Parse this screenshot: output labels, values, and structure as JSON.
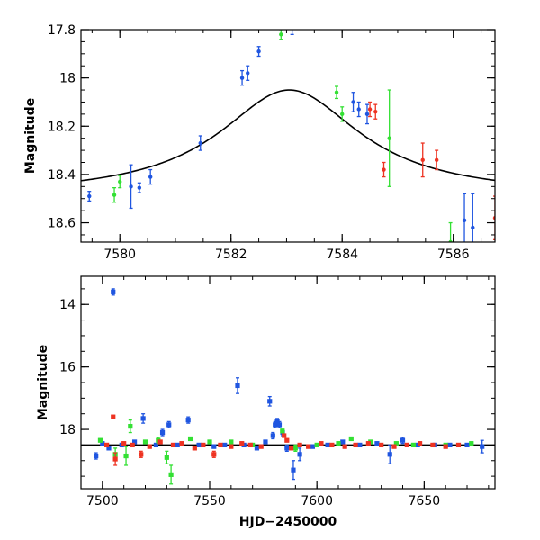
{
  "chart_data": [
    {
      "type": "scatter",
      "title": "",
      "xlabel": "",
      "ylabel": "Magnitude",
      "xlim": [
        7579.3,
        7586.75
      ],
      "ylim": [
        17.8,
        18.68
      ],
      "y_inverted": true,
      "x_ticks": [
        7580,
        7582,
        7584,
        7586
      ],
      "y_ticks": [
        17.8,
        18,
        18.2,
        18.4,
        18.6
      ],
      "grid": false,
      "legend": "none",
      "colors": {
        "blue": "#1f55e0",
        "green": "#33e033",
        "red": "#ee3322",
        "model": "#000000"
      },
      "model_curve": {
        "type": "lorentzian",
        "peak_x": 7583.05,
        "peak_y": 18.05,
        "baseline_y": 18.49,
        "half_width": 1.55
      },
      "series": [
        {
          "color": "blue",
          "points": [
            {
              "x": 7579.45,
              "y": 18.49,
              "err": 0.02
            },
            {
              "x": 7580.2,
              "y": 18.45,
              "err": 0.09
            },
            {
              "x": 7580.35,
              "y": 18.455,
              "err": 0.02
            },
            {
              "x": 7580.55,
              "y": 18.41,
              "err": 0.03
            },
            {
              "x": 7581.45,
              "y": 18.27,
              "err": 0.03
            },
            {
              "x": 7582.2,
              "y": 18.0,
              "err": 0.03
            },
            {
              "x": 7582.3,
              "y": 17.98,
              "err": 0.03
            },
            {
              "x": 7582.5,
              "y": 17.89,
              "err": 0.02
            },
            {
              "x": 7583.1,
              "y": 17.79,
              "err": 0.03
            },
            {
              "x": 7584.2,
              "y": 18.1,
              "err": 0.04
            },
            {
              "x": 7584.3,
              "y": 18.13,
              "err": 0.03
            },
            {
              "x": 7584.45,
              "y": 18.15,
              "err": 0.04
            },
            {
              "x": 7586.2,
              "y": 18.59,
              "err": 0.11
            },
            {
              "x": 7586.35,
              "y": 18.62,
              "err": 0.14
            }
          ]
        },
        {
          "color": "green",
          "points": [
            {
              "x": 7579.9,
              "y": 18.485,
              "err": 0.03
            },
            {
              "x": 7580.0,
              "y": 18.43,
              "err": 0.025
            },
            {
              "x": 7582.9,
              "y": 17.82,
              "err": 0.02
            },
            {
              "x": 7583.9,
              "y": 18.06,
              "err": 0.025
            },
            {
              "x": 7584.0,
              "y": 18.15,
              "err": 0.03
            },
            {
              "x": 7584.85,
              "y": 18.25,
              "err": 0.2
            },
            {
              "x": 7585.95,
              "y": 18.68,
              "err": 0.08
            }
          ]
        },
        {
          "color": "red",
          "points": [
            {
              "x": 7584.5,
              "y": 18.13,
              "err": 0.03
            },
            {
              "x": 7584.6,
              "y": 18.14,
              "err": 0.03
            },
            {
              "x": 7584.75,
              "y": 18.38,
              "err": 0.03
            },
            {
              "x": 7585.45,
              "y": 18.34,
              "err": 0.07
            },
            {
              "x": 7585.7,
              "y": 18.34,
              "err": 0.04
            },
            {
              "x": 7586.75,
              "y": 18.58,
              "err": 0.09
            }
          ]
        }
      ]
    },
    {
      "type": "scatter",
      "title": "",
      "xlabel": "HJD−2450000",
      "ylabel": "Magnitude",
      "xlim": [
        7490,
        7683
      ],
      "ylim": [
        13.1,
        19.9
      ],
      "y_inverted": true,
      "x_ticks": [
        7500,
        7550,
        7600,
        7650
      ],
      "y_ticks": [
        14,
        16,
        18
      ],
      "grid": false,
      "legend": "none",
      "baseline_y": 18.5,
      "colors": {
        "blue": "#1f55e0",
        "green": "#33e033",
        "red": "#ee3322",
        "model": "#000000"
      },
      "series": [
        {
          "color": "blue",
          "points": [
            {
              "x": 7497,
              "y": 18.85,
              "err": 0.1
            },
            {
              "x": 7500,
              "y": 18.45,
              "err": 0.05
            },
            {
              "x": 7503,
              "y": 18.6,
              "err": 0.05
            },
            {
              "x": 7505,
              "y": 13.6,
              "err": 0.1
            },
            {
              "x": 7509,
              "y": 18.5,
              "err": 0.05
            },
            {
              "x": 7515,
              "y": 18.4,
              "err": 0.05
            },
            {
              "x": 7519,
              "y": 17.65,
              "err": 0.15
            },
            {
              "x": 7525,
              "y": 18.5,
              "err": 0.05
            },
            {
              "x": 7528,
              "y": 18.1,
              "err": 0.1
            },
            {
              "x": 7531,
              "y": 17.85,
              "err": 0.1
            },
            {
              "x": 7535,
              "y": 18.5,
              "err": 0.05
            },
            {
              "x": 7540,
              "y": 17.7,
              "err": 0.1
            },
            {
              "x": 7545,
              "y": 18.5,
              "err": 0.05
            },
            {
              "x": 7552,
              "y": 18.55,
              "err": 0.05
            },
            {
              "x": 7557,
              "y": 18.5,
              "err": 0.05
            },
            {
              "x": 7563,
              "y": 16.6,
              "err": 0.25
            },
            {
              "x": 7566,
              "y": 18.5,
              "err": 0.05
            },
            {
              "x": 7572,
              "y": 18.6,
              "err": 0.05
            },
            {
              "x": 7576,
              "y": 18.4,
              "err": 0.05
            },
            {
              "x": 7578,
              "y": 17.1,
              "err": 0.15
            },
            {
              "x": 7579.5,
              "y": 18.2,
              "err": 0.1
            },
            {
              "x": 7580.5,
              "y": 17.85,
              "err": 0.1
            },
            {
              "x": 7581.5,
              "y": 17.75,
              "err": 0.1
            },
            {
              "x": 7582.5,
              "y": 17.85,
              "err": 0.1
            },
            {
              "x": 7584,
              "y": 18.1,
              "err": 0.1
            },
            {
              "x": 7586,
              "y": 18.6,
              "err": 0.1
            },
            {
              "x": 7589,
              "y": 19.3,
              "err": 0.3
            },
            {
              "x": 7592,
              "y": 18.8,
              "err": 0.2
            },
            {
              "x": 7598,
              "y": 18.55,
              "err": 0.05
            },
            {
              "x": 7605,
              "y": 18.5,
              "err": 0.05
            },
            {
              "x": 7612,
              "y": 18.4,
              "err": 0.05
            },
            {
              "x": 7620,
              "y": 18.5,
              "err": 0.05
            },
            {
              "x": 7628,
              "y": 18.45,
              "err": 0.05
            },
            {
              "x": 7634,
              "y": 18.8,
              "err": 0.3
            },
            {
              "x": 7640,
              "y": 18.35,
              "err": 0.1
            },
            {
              "x": 7647,
              "y": 18.5,
              "err": 0.05
            },
            {
              "x": 7655,
              "y": 18.5,
              "err": 0.05
            },
            {
              "x": 7662,
              "y": 18.5,
              "err": 0.05
            },
            {
              "x": 7670,
              "y": 18.5,
              "err": 0.05
            },
            {
              "x": 7677,
              "y": 18.55,
              "err": 0.2
            }
          ]
        },
        {
          "color": "green",
          "points": [
            {
              "x": 7499,
              "y": 18.35,
              "err": 0.05
            },
            {
              "x": 7506,
              "y": 18.8,
              "err": 0.2
            },
            {
              "x": 7511,
              "y": 18.85,
              "err": 0.3
            },
            {
              "x": 7513,
              "y": 17.9,
              "err": 0.2
            },
            {
              "x": 7520,
              "y": 18.4,
              "err": 0.05
            },
            {
              "x": 7526,
              "y": 18.35,
              "err": 0.1
            },
            {
              "x": 7530,
              "y": 18.9,
              "err": 0.2
            },
            {
              "x": 7532,
              "y": 19.45,
              "err": 0.3
            },
            {
              "x": 7541,
              "y": 18.3,
              "err": 0.05
            },
            {
              "x": 7550,
              "y": 18.4,
              "err": 0.05
            },
            {
              "x": 7560,
              "y": 18.4,
              "err": 0.05
            },
            {
              "x": 7570,
              "y": 18.5,
              "err": 0.05
            },
            {
              "x": 7583.9,
              "y": 18.05,
              "err": 0.05
            },
            {
              "x": 7590,
              "y": 18.6,
              "err": 0.1
            },
            {
              "x": 7600,
              "y": 18.5,
              "err": 0.05
            },
            {
              "x": 7610,
              "y": 18.45,
              "err": 0.05
            },
            {
              "x": 7616,
              "y": 18.3,
              "err": 0.05
            },
            {
              "x": 7625,
              "y": 18.4,
              "err": 0.05
            },
            {
              "x": 7637,
              "y": 18.45,
              "err": 0.05
            },
            {
              "x": 7645,
              "y": 18.5,
              "err": 0.05
            },
            {
              "x": 7660,
              "y": 18.5,
              "err": 0.05
            },
            {
              "x": 7672,
              "y": 18.45,
              "err": 0.05
            }
          ]
        },
        {
          "color": "red",
          "points": [
            {
              "x": 7502,
              "y": 18.5,
              "err": 0.05
            },
            {
              "x": 7505,
              "y": 17.6,
              "err": 0.05
            },
            {
              "x": 7506,
              "y": 18.95,
              "err": 0.2
            },
            {
              "x": 7510,
              "y": 18.45,
              "err": 0.05
            },
            {
              "x": 7514,
              "y": 18.5,
              "err": 0.05
            },
            {
              "x": 7518,
              "y": 18.8,
              "err": 0.1
            },
            {
              "x": 7522,
              "y": 18.55,
              "err": 0.05
            },
            {
              "x": 7527,
              "y": 18.4,
              "err": 0.05
            },
            {
              "x": 7533,
              "y": 18.5,
              "err": 0.05
            },
            {
              "x": 7537,
              "y": 18.45,
              "err": 0.05
            },
            {
              "x": 7543,
              "y": 18.6,
              "err": 0.05
            },
            {
              "x": 7547,
              "y": 18.5,
              "err": 0.05
            },
            {
              "x": 7552,
              "y": 18.8,
              "err": 0.1
            },
            {
              "x": 7555,
              "y": 18.5,
              "err": 0.05
            },
            {
              "x": 7560,
              "y": 18.55,
              "err": 0.05
            },
            {
              "x": 7565,
              "y": 18.45,
              "err": 0.05
            },
            {
              "x": 7569,
              "y": 18.5,
              "err": 0.05
            },
            {
              "x": 7574,
              "y": 18.55,
              "err": 0.05
            },
            {
              "x": 7584.7,
              "y": 18.2,
              "err": 0.05
            },
            {
              "x": 7586,
              "y": 18.35,
              "err": 0.05
            },
            {
              "x": 7588,
              "y": 18.6,
              "err": 0.05
            },
            {
              "x": 7592,
              "y": 18.5,
              "err": 0.05
            },
            {
              "x": 7596,
              "y": 18.55,
              "err": 0.05
            },
            {
              "x": 7602,
              "y": 18.45,
              "err": 0.05
            },
            {
              "x": 7607,
              "y": 18.5,
              "err": 0.05
            },
            {
              "x": 7613,
              "y": 18.55,
              "err": 0.05
            },
            {
              "x": 7618,
              "y": 18.5,
              "err": 0.05
            },
            {
              "x": 7624,
              "y": 18.45,
              "err": 0.05
            },
            {
              "x": 7630,
              "y": 18.5,
              "err": 0.05
            },
            {
              "x": 7636,
              "y": 18.55,
              "err": 0.05
            },
            {
              "x": 7642,
              "y": 18.5,
              "err": 0.05
            },
            {
              "x": 7648,
              "y": 18.45,
              "err": 0.05
            },
            {
              "x": 7654,
              "y": 18.5,
              "err": 0.05
            },
            {
              "x": 7660,
              "y": 18.55,
              "err": 0.05
            },
            {
              "x": 7666,
              "y": 18.5,
              "err": 0.05
            }
          ]
        }
      ]
    }
  ]
}
